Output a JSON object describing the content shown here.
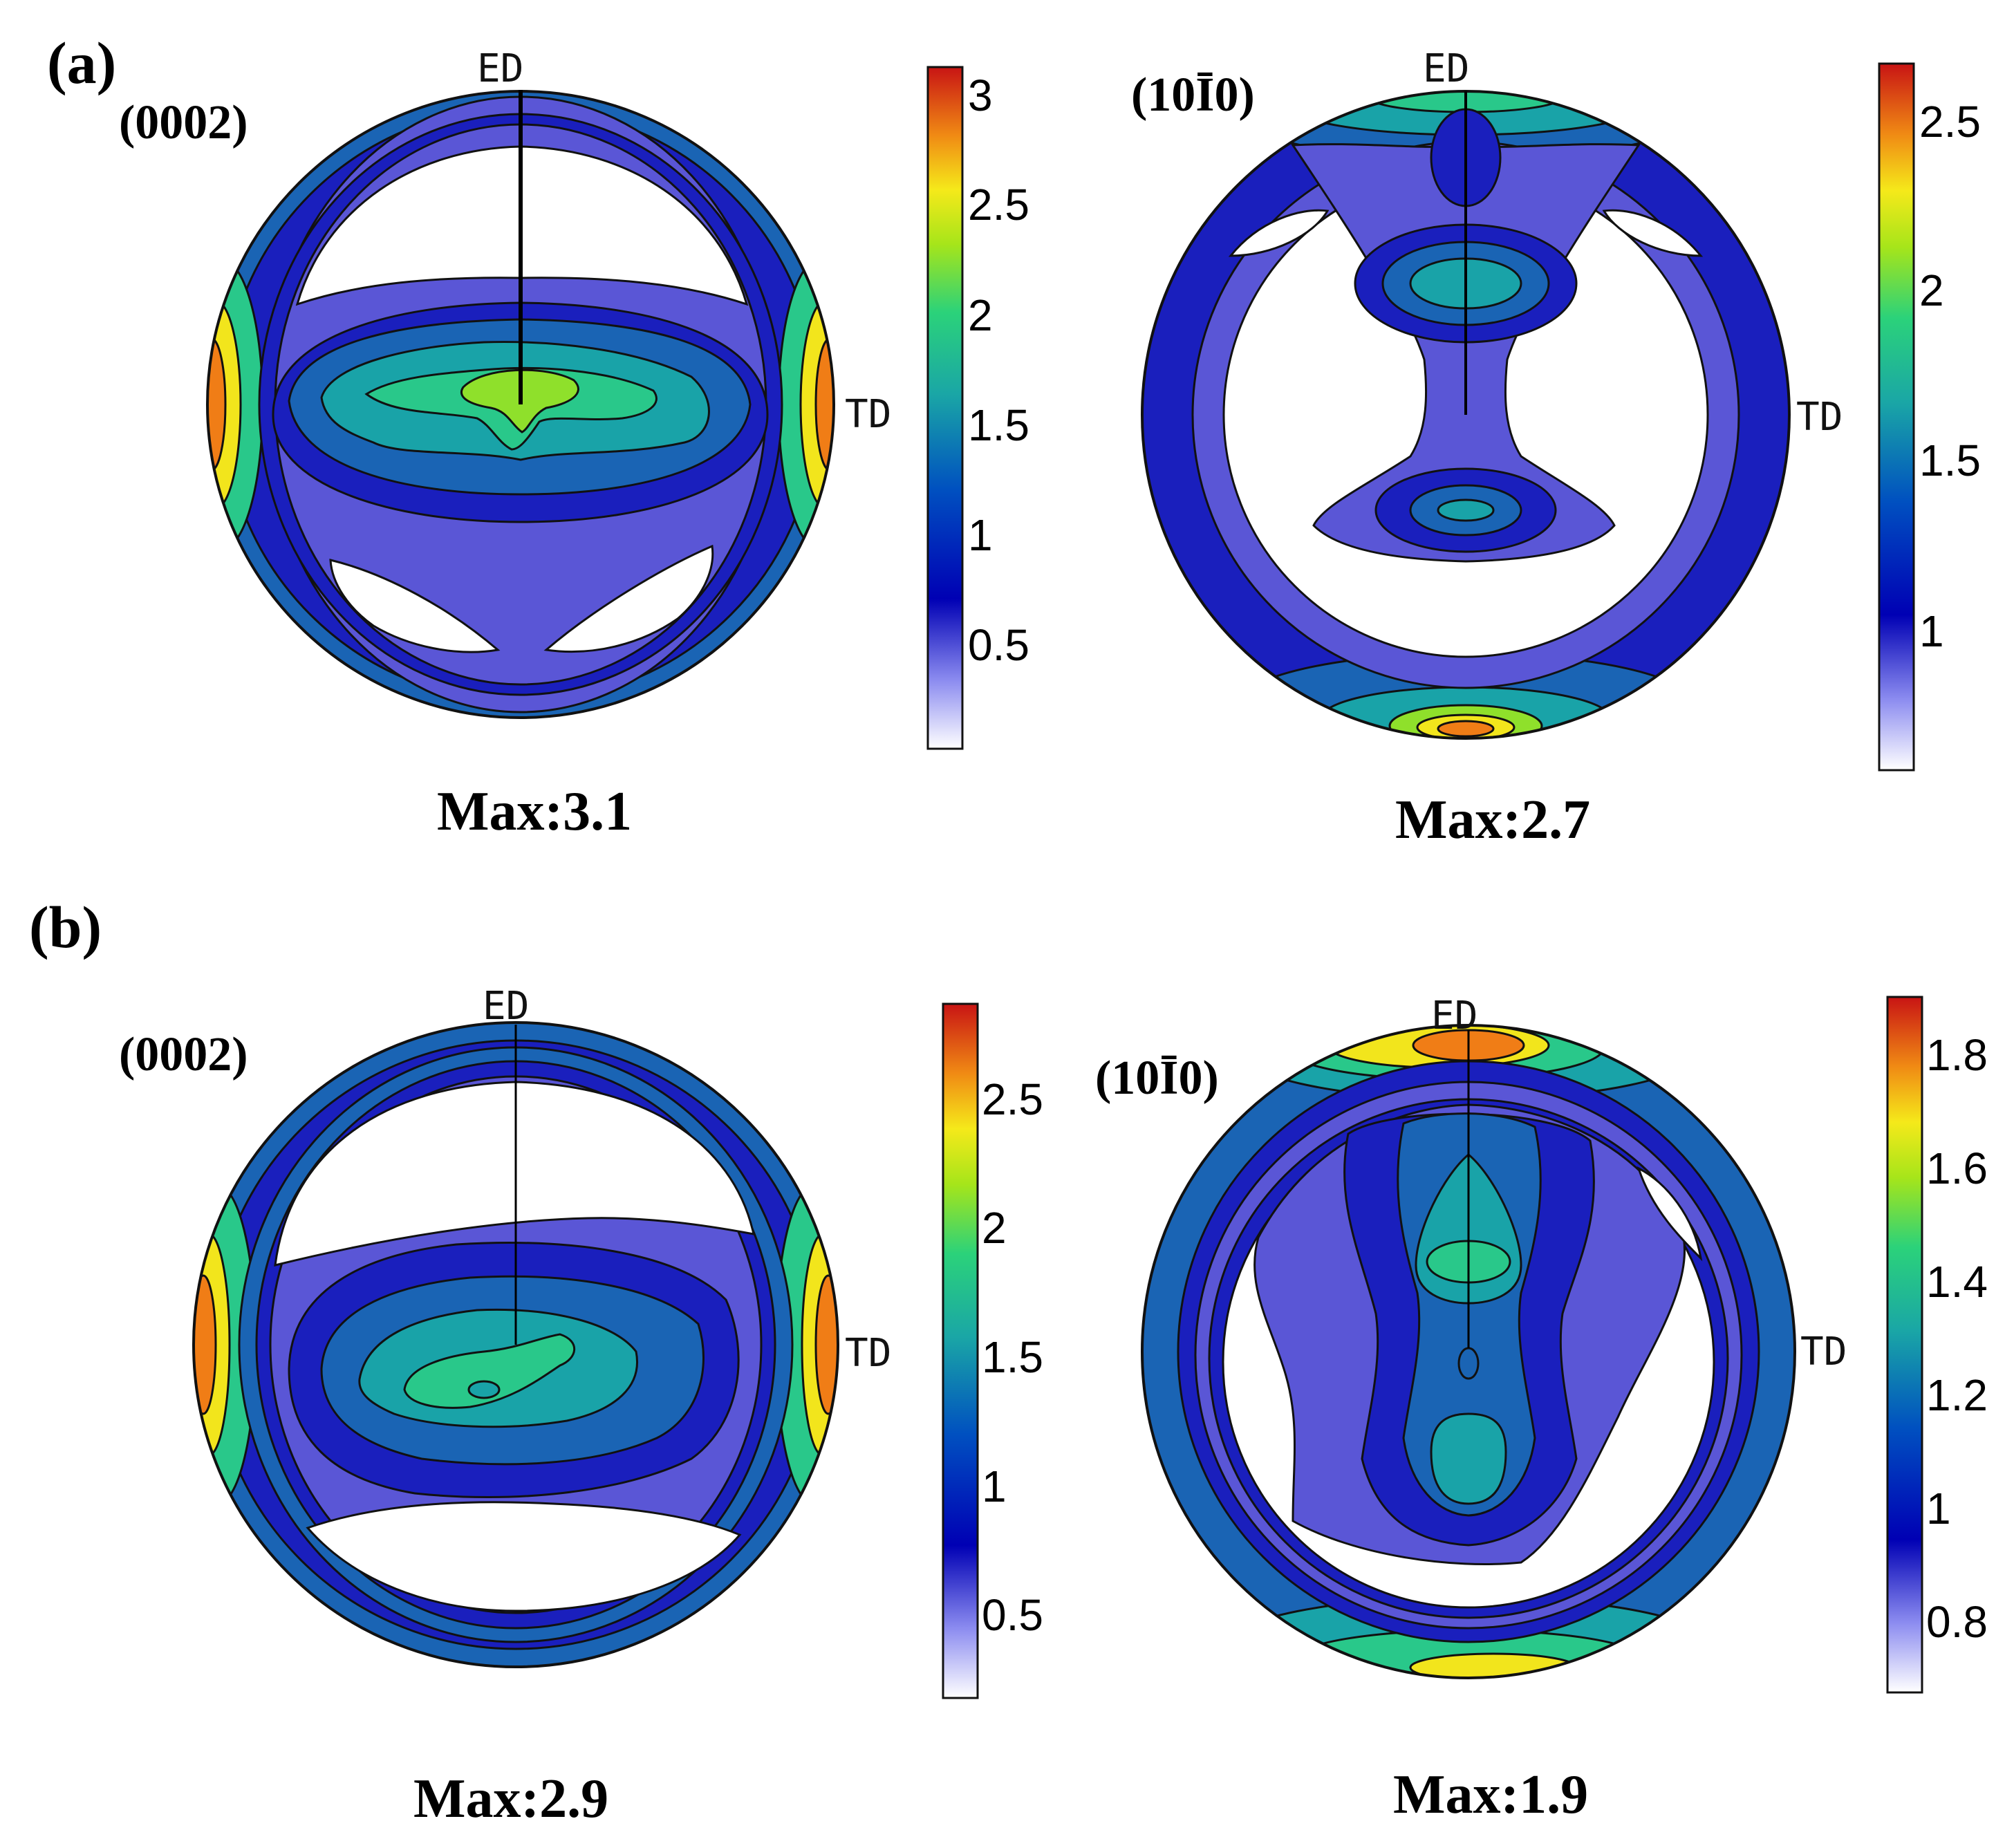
{
  "colors": {
    "c0": "#ffffff",
    "c1": "#5a56d6",
    "c2": "#1a1fbd",
    "c3": "#1a64b4",
    "c4": "#19a3a8",
    "c5": "#29c88a",
    "c6": "#8fe02b",
    "c7": "#f2e51c",
    "c8": "#f07d16",
    "c9": "#d41a1a"
  },
  "panels": [
    {
      "label": "(a)",
      "figures": [
        {
          "plane_label": "(0002)",
          "ed_label": "ED",
          "td_label": "TD",
          "max_label": "Max:3.1",
          "colorbar": {
            "ticks": [
              "3",
              "2.5",
              "2",
              "1.5",
              "1",
              "0.5"
            ]
          }
        },
        {
          "plane_label": "(10Ī0)",
          "ed_label": "ED",
          "td_label": "TD",
          "max_label": "Max:2.7",
          "colorbar": {
            "ticks": [
              "2.5",
              "2",
              "1.5",
              "1"
            ]
          }
        }
      ]
    },
    {
      "label": "(b)",
      "figures": [
        {
          "plane_label": "(0002)",
          "ed_label": "ED",
          "td_label": "TD",
          "max_label": "Max:2.9",
          "colorbar": {
            "ticks": [
              "2.5",
              "2",
              "1.5",
              "1",
              "0.5"
            ]
          }
        },
        {
          "plane_label": "(10Ī0)",
          "ed_label": "ED",
          "td_label": "TD",
          "max_label": "Max:1.9",
          "colorbar": {
            "ticks": [
              "1.8",
              "1.6",
              "1.4",
              "1.2",
              "1",
              "0.8"
            ]
          }
        }
      ]
    }
  ]
}
